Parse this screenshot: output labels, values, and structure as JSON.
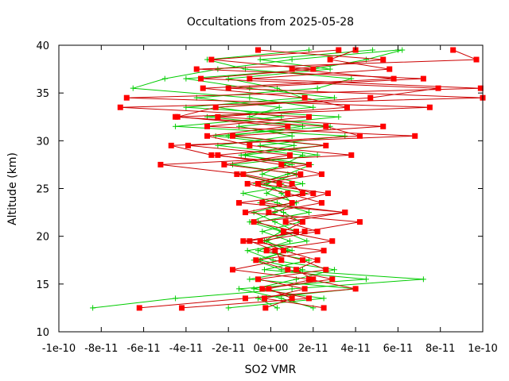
{
  "chart_data": {
    "type": "scatter",
    "title": "Occultations from 2025-05-28",
    "xlabel": "SO2 VMR",
    "ylabel": "Altitude (km)",
    "xlim": [
      -1e-10,
      1e-10
    ],
    "ylim": [
      10,
      40
    ],
    "x_ticks": [
      -1e-10,
      -8e-11,
      -6e-11,
      -4e-11,
      -2e-11,
      0,
      2e-11,
      4e-11,
      6e-11,
      8e-11,
      1e-10
    ],
    "x_tick_labels": [
      "-1e-10",
      "-8e-11",
      "-6e-11",
      "-4e-11",
      "-2e-11",
      "0e+00",
      "2e-11",
      "4e-11",
      "6e-11",
      "8e-11",
      "1e-10"
    ],
    "y_ticks": [
      10,
      15,
      20,
      25,
      30,
      35,
      40
    ],
    "y_tick_labels": [
      "10",
      "15",
      "20",
      "25",
      "30",
      "35",
      "40"
    ],
    "grid": false,
    "legend": "none",
    "colors": {
      "green": "#00cc00",
      "red": "#cc0000",
      "red_marker": "#ff0000"
    },
    "series": [
      {
        "marker": "plus",
        "color": "#00cc00",
        "profiles": [
          {
            "alt": [
              12.5,
              13.5,
              14.5,
              15.5,
              16.5,
              17.5,
              18.5,
              19.5,
              20.5,
              21.5,
              22.5,
              23.5,
              24.5,
              25.5,
              26.5,
              27.5,
              28.5,
              29.5,
              30.5,
              31.5,
              32.5,
              33.5,
              34.5,
              35.5,
              36.5,
              37.5,
              38.5,
              39.5
            ],
            "vmr": [
              -8.4e-11,
              -4.5e-11,
              1e-11,
              7.2e-11,
              5e-12,
              -8e-12,
              1e-11,
              -3e-12,
              5e-12,
              -1e-11,
              2e-12,
              1.2e-11,
              -2e-12,
              5e-12,
              -1.5e-11,
              1e-11,
              -1.2e-11,
              2.5e-11,
              -2e-11,
              1.5e-11,
              -3e-11,
              2e-11,
              -1e-11,
              -6.5e-11,
              -5e-11,
              -2.5e-11,
              1e-11,
              6e-11
            ]
          },
          {
            "alt": [
              12.5,
              13.5,
              14.5,
              15.5,
              16.5,
              17.5,
              18.5,
              19.5,
              20.5,
              21.5,
              22.5,
              23.5,
              24.5,
              25.5,
              26.5,
              27.5,
              28.5,
              29.5,
              30.5,
              31.5,
              32.5,
              33.5,
              34.5,
              35.5,
              36.5,
              37.5,
              38.5,
              39.5
            ],
            "vmr": [
              3e-12,
              -6e-12,
              4e-11,
              -1e-11,
              1.5e-11,
              -5e-12,
              8e-12,
              -2e-12,
              1.2e-11,
              2e-12,
              -8e-12,
              1e-11,
              5e-12,
              -2e-12,
              1.2e-11,
              -1.8e-11,
              2.2e-11,
              -5e-12,
              3.5e-11,
              -4.5e-11,
              5e-12,
              -2.5e-11,
              3e-11,
              -1e-11,
              -4e-11,
              2e-11,
              4.5e-11,
              6.2e-11
            ]
          },
          {
            "alt": [
              12.5,
              13.5,
              14.5,
              15.5,
              16.5,
              17.5,
              18.5,
              19.5,
              20.5,
              21.5,
              22.5,
              23.5,
              24.5,
              25.5,
              26.5,
              27.5,
              28.5,
              29.5,
              30.5,
              31.5,
              32.5,
              33.5,
              34.5,
              35.5,
              36.5,
              37.5,
              38.5,
              39.5
            ],
            "vmr": [
              2e-11,
              5e-12,
              -1.5e-11,
              4.5e-11,
              -3e-12,
              1.8e-11,
              -6e-12,
              9e-12,
              -4e-12,
              1.4e-11,
              6e-12,
              -5e-12,
              1.6e-11,
              -7e-12,
              8e-12,
              1.9e-11,
              -1.4e-11,
              1.1e-11,
              -2.6e-11,
              2.8e-11,
              -1e-11,
              4e-12,
              -3.5e-11,
              2.2e-11,
              3.8e-11,
              -1.2e-11,
              -3e-11,
              1.8e-11
            ]
          },
          {
            "alt": [
              12.5,
              13.5,
              14.5,
              15.5,
              16.5,
              17.5,
              18.5,
              19.5,
              20.5,
              21.5,
              22.5,
              23.5,
              24.5,
              25.5,
              26.5,
              27.5,
              28.5,
              29.5,
              30.5,
              31.5,
              32.5,
              33.5,
              34.5,
              35.5,
              36.5,
              37.5,
              38.5,
              39.5
            ],
            "vmr": [
              -2e-11,
              2.5e-11,
              -8e-12,
              1.2e-11,
              3e-11,
              1e-12,
              -1.1e-11,
              1.7e-11,
              6e-12,
              -6e-12,
              1.8e-11,
              3e-12,
              -1.3e-11,
              1.5e-11,
              -4e-12,
              6e-12,
              1.5e-11,
              -2.5e-11,
              1e-11,
              -1.5e-11,
              3.2e-11,
              -4e-11,
              1.5e-11,
              3e-12,
              -2e-11,
              2.8e-11,
              -5e-12,
              4.8e-11
            ]
          }
        ]
      },
      {
        "marker": "square",
        "color": "#cc0000",
        "profiles": [
          {
            "alt": [
              12.5,
              13.5,
              14.5,
              15.5,
              16.5,
              17.5,
              18.5,
              19.5,
              20.5,
              21.5,
              22.5,
              23.5,
              24.5,
              25.5,
              26.5,
              27.5,
              28.5,
              29.5,
              30.5,
              31.5,
              32.5,
              33.5,
              34.5,
              35.5,
              36.5,
              37.5,
              38.5,
              39.5
            ],
            "vmr": [
              -6.2e-11,
              -1.2e-11,
              4e-11,
              1.8e-11,
              -1.8e-11,
              5e-12,
              2e-12,
              -1e-11,
              1.2e-11,
              -8e-12,
              3.5e-11,
              -1.5e-11,
              2e-11,
              4e-12,
              -1.6e-11,
              1.8e-11,
              -2.8e-11,
              -4.7e-11,
              6.8e-11,
              -3e-11,
              1.8e-11,
              -7.1e-11,
              1.1e-10,
              -2e-11,
              7.2e-11,
              -3.5e-11,
              9.7e-11,
              8.6e-11
            ]
          },
          {
            "alt": [
              12.5,
              13.5,
              14.5,
              15.5,
              16.5,
              17.5,
              18.5,
              19.5,
              20.5,
              21.5,
              22.5,
              23.5,
              24.5,
              25.5,
              26.5,
              27.5,
              28.5,
              29.5,
              30.5,
              31.5,
              32.5,
              33.5,
              34.5,
              35.5,
              36.5,
              37.5,
              38.5,
              39.5
            ],
            "vmr": [
              2.5e-11,
              -3e-12,
              1.6e-11,
              -6e-12,
              2.6e-11,
              1.5e-11,
              -2e-12,
              2.9e-11,
              6e-12,
              1.5e-11,
              -1e-12,
              2.4e-11,
              8e-12,
              -1.1e-11,
              1.4e-11,
              -2.2e-11,
              9e-12,
              -3.9e-11,
              4.2e-11,
              2.6e-11,
              -4.5e-11,
              7.5e-11,
              -6.8e-11,
              9.9e-11,
              -1e-11,
              5.6e-11,
              2.8e-11,
              4e-11
            ]
          },
          {
            "alt": [
              12.5,
              13.5,
              14.5,
              15.5,
              16.5,
              17.5,
              18.5,
              19.5,
              20.5,
              21.5,
              22.5,
              23.5,
              24.5,
              25.5,
              26.5,
              27.5,
              28.5,
              29.5,
              30.5,
              31.5,
              32.5,
              33.5,
              34.5,
              35.5,
              36.5,
              37.5,
              38.5,
              39.5
            ],
            "vmr": [
              -4.2e-11,
              1.8e-11,
              -4e-12,
              2.9e-11,
              8e-12,
              -7e-12,
              2.5e-11,
              -1.3e-11,
              1.6e-11,
              4.2e-11,
              -1.2e-11,
              1e-11,
              2.7e-11,
              -6e-12,
              2.4e-11,
              5e-12,
              -2.5e-11,
              2.6e-11,
              -1.8e-11,
              5.3e-11,
              -2.5e-11,
              3.6e-11,
              1.6e-11,
              -3.2e-11,
              5.8e-11,
              1e-11,
              5.3e-11,
              -6e-12
            ]
          },
          {
            "alt": [
              12.5,
              13.5,
              14.5,
              15.5,
              16.5,
              17.5,
              18.5,
              19.5,
              20.5,
              21.5,
              22.5,
              23.5,
              24.5,
              25.5,
              26.5,
              27.5,
              28.5,
              29.5,
              30.5,
              31.5,
              32.5,
              33.5,
              34.5,
              35.5,
              36.5,
              37.5,
              38.5,
              39.5
            ],
            "vmr": [
              -2.5e-12,
              1e-11,
              -1e-12,
              2e-11,
              1.2e-11,
              2.2e-11,
              6e-12,
              -5e-12,
              2.2e-11,
              7e-12,
              3.5e-11,
              -4e-12,
              1.5e-11,
              1e-11,
              -1.3e-11,
              -5.2e-11,
              3.8e-11,
              -1e-11,
              -3e-11,
              8e-12,
              -4.4e-11,
              -2.6e-11,
              4.7e-11,
              7.9e-11,
              -3.3e-11,
              2e-11,
              -2.8e-11,
              3.2e-11
            ]
          }
        ]
      }
    ]
  }
}
